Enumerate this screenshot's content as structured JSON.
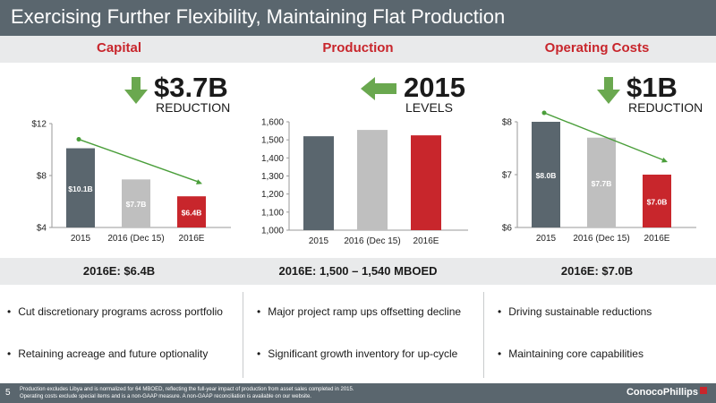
{
  "header": {
    "title": "Exercising Further Flexibility, Maintaining Flat Production"
  },
  "sections": [
    {
      "heading": "Capital",
      "big_value": "$3.7B",
      "big_sub": "REDUCTION",
      "summary": "2016E: $6.4B",
      "bullets": [
        "Cut discretionary programs across portfolio",
        "Retaining acreage and future optionality"
      ]
    },
    {
      "heading": "Production",
      "big_value": "2015",
      "big_sub": "LEVELS",
      "summary": "2016E: 1,500 – 1,540 MBOED",
      "bullets": [
        "Major project ramp ups offsetting decline",
        "Significant growth inventory for up-cycle"
      ]
    },
    {
      "heading": "Operating Costs",
      "big_value": "$1B",
      "big_sub": "REDUCTION",
      "summary": "2016E: $7.0B",
      "bullets": [
        "Driving sustainable reductions",
        "Maintaining core capabilities"
      ]
    }
  ],
  "chart_data": [
    {
      "type": "bar",
      "categories": [
        "2015",
        "2016 (Dec 15)",
        "2016E"
      ],
      "values": [
        10.1,
        7.7,
        6.4
      ],
      "data_labels": [
        "$10.1B",
        "$7.7B",
        "$6.4B"
      ],
      "ylim": [
        4,
        12
      ],
      "yticks": [
        4,
        8,
        12
      ],
      "ytick_labels": [
        "$4",
        "$8",
        "$12"
      ],
      "colors": [
        "#5a666e",
        "#bfbfbf",
        "#c8262c"
      ],
      "trend_line": true,
      "grid": false
    },
    {
      "type": "bar",
      "categories": [
        "2015",
        "2016 (Dec 15)",
        "2016E"
      ],
      "values": [
        1520,
        1555,
        1525
      ],
      "ylim": [
        1000,
        1600
      ],
      "yticks": [
        1000,
        1100,
        1200,
        1300,
        1400,
        1500,
        1600
      ],
      "ytick_labels": [
        "1,000",
        "1,100",
        "1,200",
        "1,300",
        "1,400",
        "1,500",
        "1,600"
      ],
      "colors": [
        "#5a666e",
        "#bfbfbf",
        "#c8262c"
      ],
      "trend_line": false,
      "grid": false
    },
    {
      "type": "bar",
      "categories": [
        "2015",
        "2016 (Dec 15)",
        "2016E"
      ],
      "values": [
        8.0,
        7.7,
        7.0
      ],
      "data_labels": [
        "$8.0B",
        "$7.7B",
        "$7.0B"
      ],
      "ylim": [
        6,
        8
      ],
      "yticks": [
        6,
        7,
        8
      ],
      "ytick_labels": [
        "$6",
        "$7",
        "$8"
      ],
      "colors": [
        "#5a666e",
        "#bfbfbf",
        "#c8262c"
      ],
      "trend_line": true,
      "grid": false
    }
  ],
  "arrows": {
    "down_color": "#6aa84f",
    "left_color": "#6aa84f",
    "trend_color": "#4a9e3a"
  },
  "footer": {
    "page_number": "5",
    "note_line1": "Production excludes Libya and is normalized for 64 MBOED, reflecting the full-year impact of production from asset sales completed in 2015.",
    "note_line2": "Operating costs exclude special items and is a non-GAAP measure. A non-GAAP reconciliation is available on our website.",
    "logo_text": "ConocoPhillips"
  }
}
